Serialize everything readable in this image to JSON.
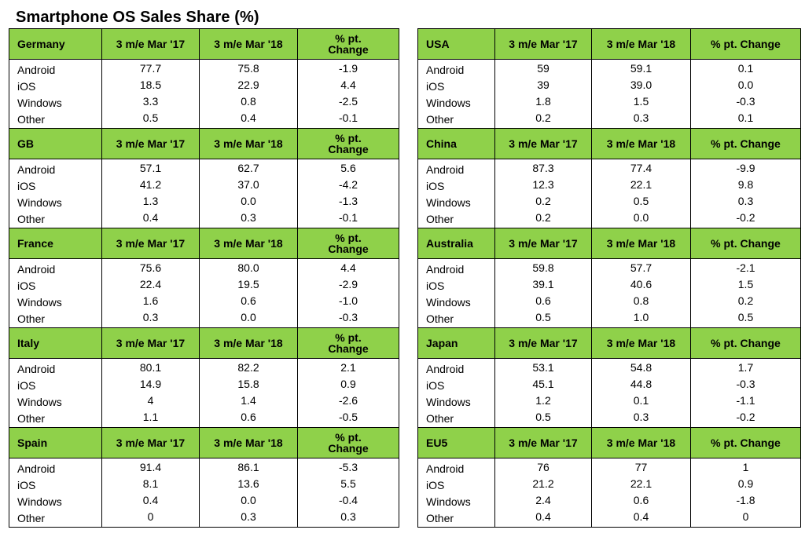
{
  "title": "Smartphone OS Sales Share (%)",
  "header_fill": "#8fd14a",
  "columns": {
    "prev": "3 m/e Mar '17",
    "curr": "3 m/e Mar '18"
  },
  "left_blocks": [
    {
      "region": "Germany",
      "change_label": "% pt.\nChange",
      "rows": [
        {
          "os": "Android",
          "prev": "77.7",
          "curr": "75.8",
          "chg": "-1.9"
        },
        {
          "os": "iOS",
          "prev": "18.5",
          "curr": "22.9",
          "chg": "4.4"
        },
        {
          "os": "Windows",
          "prev": "3.3",
          "curr": "0.8",
          "chg": "-2.5"
        },
        {
          "os": "Other",
          "prev": "0.5",
          "curr": "0.4",
          "chg": "-0.1"
        }
      ]
    },
    {
      "region": "GB",
      "change_label": "% pt.\nChange",
      "rows": [
        {
          "os": "Android",
          "prev": "57.1",
          "curr": "62.7",
          "chg": "5.6"
        },
        {
          "os": "iOS",
          "prev": "41.2",
          "curr": "37.0",
          "chg": "-4.2"
        },
        {
          "os": "Windows",
          "prev": "1.3",
          "curr": "0.0",
          "chg": "-1.3"
        },
        {
          "os": "Other",
          "prev": "0.4",
          "curr": "0.3",
          "chg": "-0.1"
        }
      ]
    },
    {
      "region": "France",
      "change_label": "% pt.\nChange",
      "rows": [
        {
          "os": "Android",
          "prev": "75.6",
          "curr": "80.0",
          "chg": "4.4"
        },
        {
          "os": "iOS",
          "prev": "22.4",
          "curr": "19.5",
          "chg": "-2.9"
        },
        {
          "os": "Windows",
          "prev": "1.6",
          "curr": "0.6",
          "chg": "-1.0"
        },
        {
          "os": "Other",
          "prev": "0.3",
          "curr": "0.0",
          "chg": "-0.3"
        }
      ]
    },
    {
      "region": "Italy",
      "change_label": "% pt.\nChange",
      "rows": [
        {
          "os": "Android",
          "prev": "80.1",
          "curr": "82.2",
          "chg": "2.1"
        },
        {
          "os": "iOS",
          "prev": "14.9",
          "curr": "15.8",
          "chg": "0.9"
        },
        {
          "os": "Windows",
          "prev": "4",
          "curr": "1.4",
          "chg": "-2.6"
        },
        {
          "os": "Other",
          "prev": "1.1",
          "curr": "0.6",
          "chg": "-0.5"
        }
      ]
    },
    {
      "region": "Spain",
      "change_label": "% pt.\nChange",
      "rows": [
        {
          "os": "Android",
          "prev": "91.4",
          "curr": "86.1",
          "chg": "-5.3"
        },
        {
          "os": "iOS",
          "prev": "8.1",
          "curr": "13.6",
          "chg": "5.5"
        },
        {
          "os": "Windows",
          "prev": "0.4",
          "curr": "0.0",
          "chg": "-0.4"
        },
        {
          "os": "Other",
          "prev": "0",
          "curr": "0.3",
          "chg": "0.3"
        }
      ]
    }
  ],
  "right_blocks": [
    {
      "region": "USA",
      "change_label": "% pt. Change",
      "rows": [
        {
          "os": "Android",
          "prev": "59",
          "curr": "59.1",
          "chg": "0.1"
        },
        {
          "os": "iOS",
          "prev": "39",
          "curr": "39.0",
          "chg": "0.0"
        },
        {
          "os": "Windows",
          "prev": "1.8",
          "curr": "1.5",
          "chg": "-0.3"
        },
        {
          "os": "Other",
          "prev": "0.2",
          "curr": "0.3",
          "chg": "0.1"
        }
      ]
    },
    {
      "region": "China",
      "change_label": "% pt. Change",
      "rows": [
        {
          "os": "Android",
          "prev": "87.3",
          "curr": "77.4",
          "chg": "-9.9"
        },
        {
          "os": "iOS",
          "prev": "12.3",
          "curr": "22.1",
          "chg": "9.8"
        },
        {
          "os": "Windows",
          "prev": "0.2",
          "curr": "0.5",
          "chg": "0.3"
        },
        {
          "os": "Other",
          "prev": "0.2",
          "curr": "0.0",
          "chg": "-0.2"
        }
      ]
    },
    {
      "region": "Australia",
      "change_label": "% pt. Change",
      "rows": [
        {
          "os": "Android",
          "prev": "59.8",
          "curr": "57.7",
          "chg": "-2.1"
        },
        {
          "os": "iOS",
          "prev": "39.1",
          "curr": "40.6",
          "chg": "1.5"
        },
        {
          "os": "Windows",
          "prev": "0.6",
          "curr": "0.8",
          "chg": "0.2"
        },
        {
          "os": "Other",
          "prev": "0.5",
          "curr": "1.0",
          "chg": "0.5"
        }
      ]
    },
    {
      "region": "Japan",
      "change_label": "% pt. Change",
      "rows": [
        {
          "os": "Android",
          "prev": "53.1",
          "curr": "54.8",
          "chg": "1.7"
        },
        {
          "os": "iOS",
          "prev": "45.1",
          "curr": "44.8",
          "chg": "-0.3"
        },
        {
          "os": "Windows",
          "prev": "1.2",
          "curr": "0.1",
          "chg": "-1.1"
        },
        {
          "os": "Other",
          "prev": "0.5",
          "curr": "0.3",
          "chg": "-0.2"
        }
      ]
    },
    {
      "region": "EU5",
      "change_label": "% pt. Change",
      "rows": [
        {
          "os": "Android",
          "prev": "76",
          "curr": "77",
          "chg": "1"
        },
        {
          "os": "iOS",
          "prev": "21.2",
          "curr": "22.1",
          "chg": "0.9"
        },
        {
          "os": "Windows",
          "prev": "2.4",
          "curr": "0.6",
          "chg": "-1.8"
        },
        {
          "os": "Other",
          "prev": "0.4",
          "curr": "0.4",
          "chg": "0"
        }
      ]
    }
  ]
}
